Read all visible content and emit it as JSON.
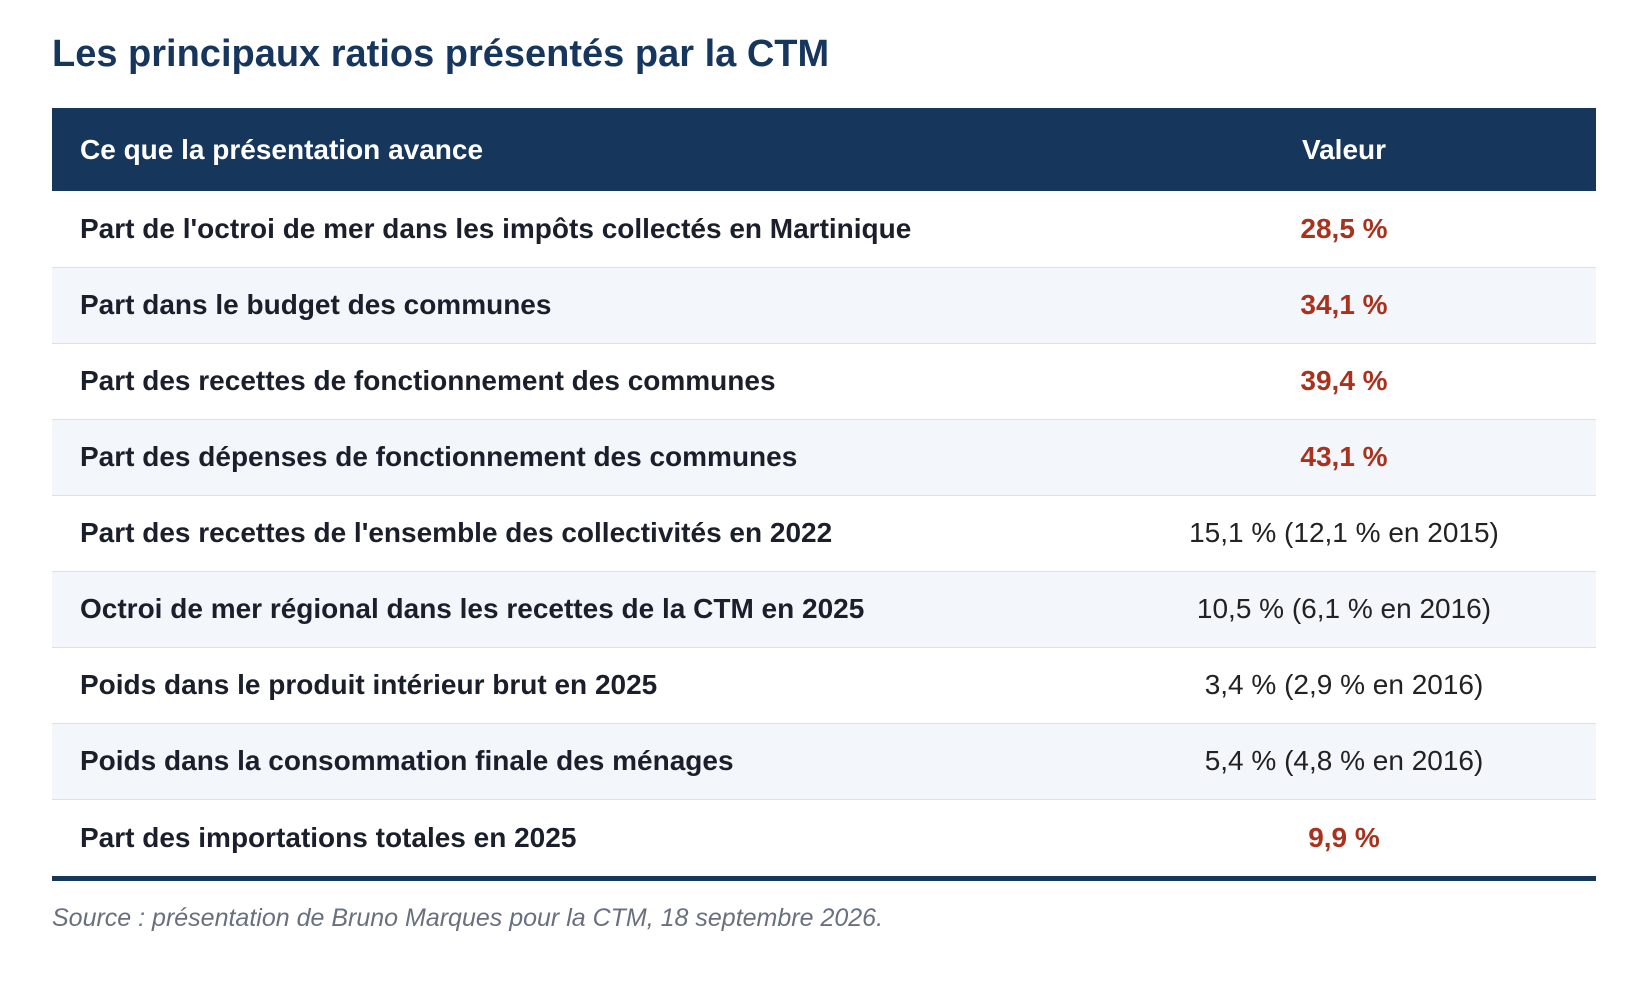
{
  "title": "Les principaux ratios présentés par la CTM",
  "table": {
    "headers": [
      "Ce que la présentation avance",
      "Valeur"
    ],
    "rows": [
      {
        "label": "Part de l'octroi de mer dans les impôts collectés en Martinique",
        "value": "28,5 %",
        "highlight": true
      },
      {
        "label": "Part dans le budget des communes",
        "value": "34,1 %",
        "highlight": true
      },
      {
        "label": "Part des recettes de fonctionnement des communes",
        "value": "39,4 %",
        "highlight": true
      },
      {
        "label": "Part des dépenses de fonctionnement des communes",
        "value": "43,1 %",
        "highlight": true
      },
      {
        "label": "Part des recettes de l'ensemble des collectivités en 2022",
        "value": "15,1 % (12,1 % en 2015)",
        "highlight": false
      },
      {
        "label": "Octroi de mer régional dans les recettes de la CTM en 2025",
        "value": "10,5 % (6,1 % en 2016)",
        "highlight": false
      },
      {
        "label": "Poids dans le produit intérieur brut en 2025",
        "value": "3,4 % (2,9 % en 2016)",
        "highlight": false
      },
      {
        "label": "Poids dans la consommation finale des ménages",
        "value": "5,4 % (4,8 % en 2016)",
        "highlight": false
      },
      {
        "label": "Part des importations totales en 2025",
        "value": "9,9 %",
        "highlight": true
      }
    ]
  },
  "source": "Source : présentation de Bruno Marques pour la CTM, 18 septembre 2026.",
  "colors": {
    "title": "#17365d",
    "header_bg": "#16365c",
    "highlight_value": "#a8321d",
    "zebra_row": "#f3f6fb"
  }
}
